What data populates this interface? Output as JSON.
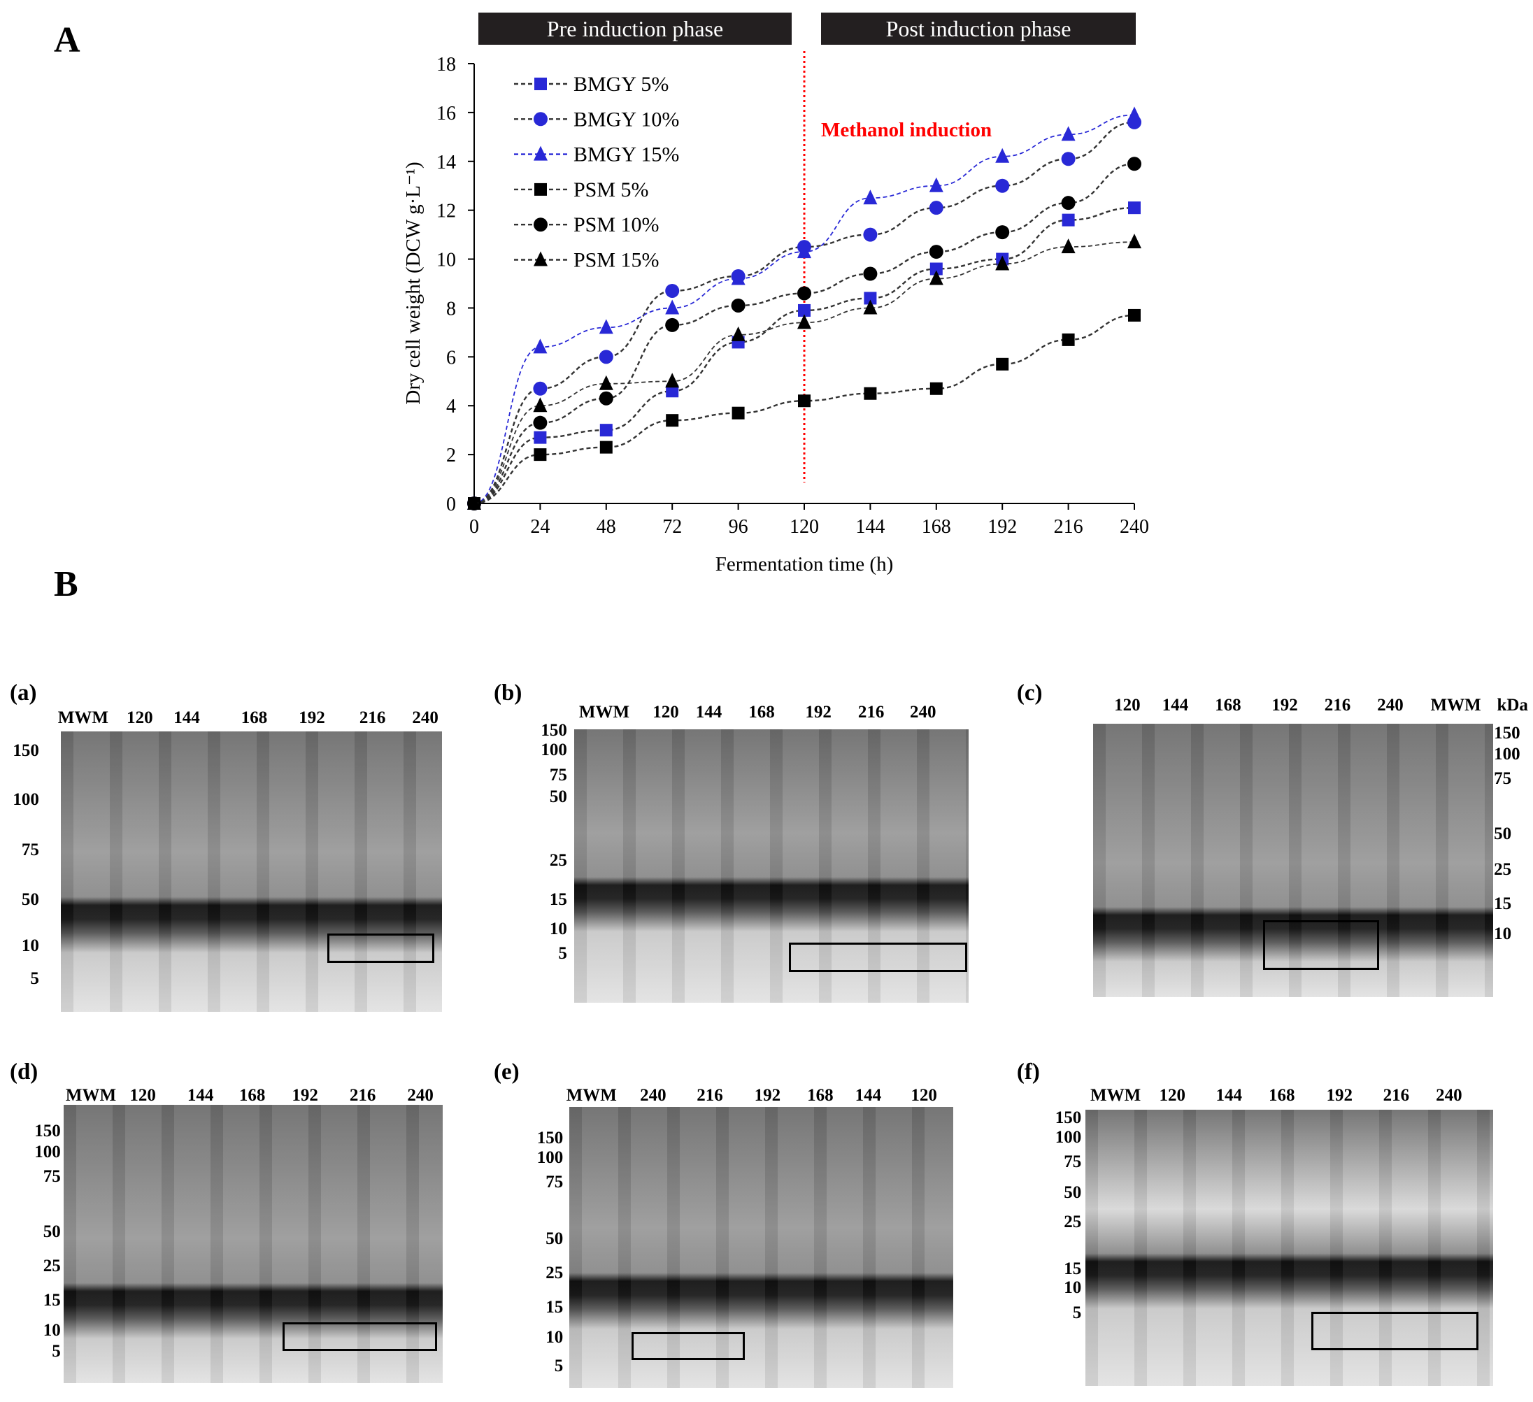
{
  "panel_a_label": "A",
  "panel_b_label": "B",
  "phases": {
    "pre": "Pre induction phase",
    "post": "Post induction phase"
  },
  "annotation": "Methanol  induction",
  "colors": {
    "blue": "#2828d6",
    "black": "#000000",
    "red": "#ff0000"
  },
  "chart_data": {
    "type": "line",
    "xlabel": "Fermentation time (h)",
    "ylabel": "Dry cell weight (DCW g·L⁻¹)",
    "x": [
      0,
      24,
      48,
      72,
      96,
      120,
      144,
      168,
      192,
      216,
      240
    ],
    "xlim": [
      0,
      240
    ],
    "ylim": [
      0,
      18
    ],
    "yticks": [
      0,
      2,
      4,
      6,
      8,
      10,
      12,
      14,
      16,
      18
    ],
    "vline_x": 120,
    "legend_position": "top-left",
    "series": [
      {
        "name": "BMGY 5%",
        "marker": "square",
        "color": "blue",
        "values": [
          0,
          2.7,
          3.0,
          4.6,
          6.6,
          7.9,
          8.4,
          9.6,
          10.0,
          11.6,
          12.1
        ]
      },
      {
        "name": "BMGY 10%",
        "marker": "circle",
        "color": "blue",
        "values": [
          0,
          4.7,
          6.0,
          8.7,
          9.3,
          10.5,
          11.0,
          12.1,
          13.0,
          14.1,
          15.6
        ]
      },
      {
        "name": "BMGY 15%",
        "marker": "triangle",
        "color": "blue",
        "values": [
          0,
          6.4,
          7.2,
          8.0,
          9.2,
          10.3,
          12.5,
          13.0,
          14.2,
          15.1,
          15.9
        ]
      },
      {
        "name": "PSM 5%",
        "marker": "square",
        "color": "black",
        "values": [
          0,
          2.0,
          2.3,
          3.4,
          3.7,
          4.2,
          4.5,
          4.7,
          5.7,
          6.7,
          7.7
        ]
      },
      {
        "name": "PSM 10%",
        "marker": "circle",
        "color": "black",
        "values": [
          0,
          3.3,
          4.3,
          7.3,
          8.1,
          8.6,
          9.4,
          10.3,
          11.1,
          12.3,
          13.9
        ]
      },
      {
        "name": "PSM 15%",
        "marker": "triangle",
        "color": "black",
        "values": [
          0,
          4.0,
          4.9,
          5.0,
          6.9,
          7.4,
          8.0,
          9.2,
          9.8,
          10.5,
          10.7
        ]
      }
    ]
  },
  "gels": [
    {
      "id": "a",
      "label": "(a)",
      "lanes": [
        "MWM",
        "120",
        "144",
        "168",
        "192",
        "216",
        "240"
      ],
      "mw": [
        "150",
        "100",
        "75",
        "50",
        "10",
        "5"
      ]
    },
    {
      "id": "b",
      "label": "(b)",
      "lanes": [
        "MWM",
        "120",
        "144",
        "168",
        "192",
        "216",
        "240"
      ],
      "mw": [
        "150",
        "100",
        "75",
        "50",
        "25",
        "15",
        "10",
        "5"
      ]
    },
    {
      "id": "c",
      "label": "(c)",
      "lanes": [
        "120",
        "144",
        "168",
        "192",
        "216",
        "240",
        "MWM",
        "kDa"
      ],
      "mw": [
        "150",
        "100",
        "75",
        "50",
        "25",
        "15",
        "10"
      ]
    },
    {
      "id": "d",
      "label": "(d)",
      "lanes": [
        "MWM",
        "120",
        "144",
        "168",
        "192",
        "216",
        "240"
      ],
      "mw": [
        "150",
        "100",
        "75",
        "50",
        "25",
        "15",
        "10",
        "5"
      ]
    },
    {
      "id": "e",
      "label": "(e)",
      "lanes": [
        "MWM",
        "240",
        "216",
        "192",
        "168",
        "144",
        "120"
      ],
      "mw": [
        "150",
        "100",
        "75",
        "50",
        "25",
        "15",
        "10",
        "5"
      ]
    },
    {
      "id": "f",
      "label": "(f)",
      "lanes": [
        "MWM",
        "120",
        "144",
        "168",
        "192",
        "216",
        "240"
      ],
      "mw": [
        "150",
        "100",
        "75",
        "50",
        "25",
        "15",
        "10",
        "5"
      ]
    }
  ]
}
